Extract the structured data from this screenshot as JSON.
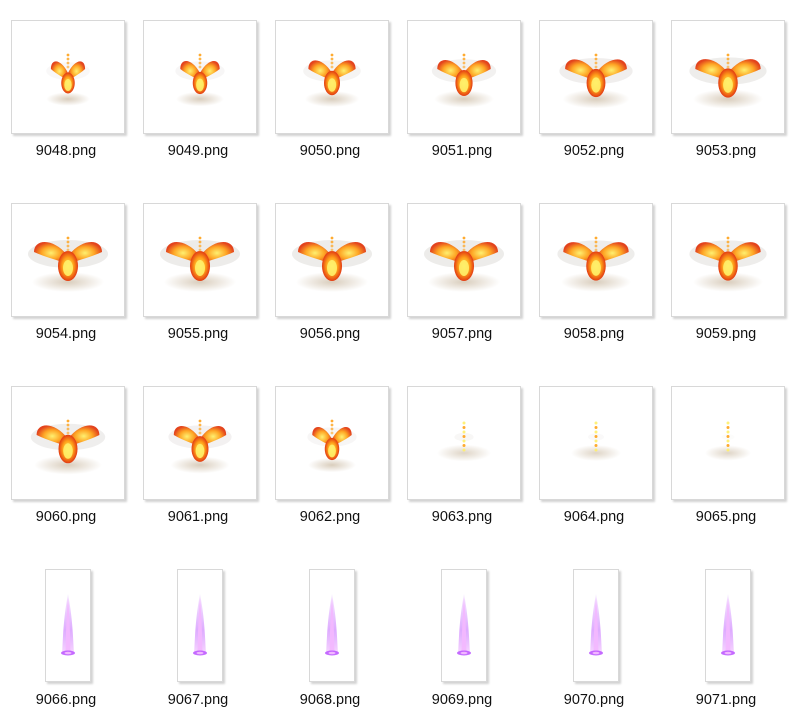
{
  "files": [
    {
      "name": "9048.png",
      "kind": "phoenix",
      "stage": 0.35
    },
    {
      "name": "9049.png",
      "kind": "phoenix",
      "stage": 0.45
    },
    {
      "name": "9050.png",
      "kind": "phoenix",
      "stage": 0.6
    },
    {
      "name": "9051.png",
      "kind": "phoenix",
      "stage": 0.72
    },
    {
      "name": "9052.png",
      "kind": "phoenix",
      "stage": 0.88
    },
    {
      "name": "9053.png",
      "kind": "phoenix",
      "stage": 0.95
    },
    {
      "name": "9054.png",
      "kind": "phoenix",
      "stage": 1.0
    },
    {
      "name": "9055.png",
      "kind": "phoenix",
      "stage": 1.0
    },
    {
      "name": "9056.png",
      "kind": "phoenix",
      "stage": 1.0
    },
    {
      "name": "9057.png",
      "kind": "phoenix",
      "stage": 1.0
    },
    {
      "name": "9058.png",
      "kind": "phoenix",
      "stage": 0.95
    },
    {
      "name": "9059.png",
      "kind": "phoenix",
      "stage": 0.95
    },
    {
      "name": "9060.png",
      "kind": "phoenix",
      "stage": 0.9
    },
    {
      "name": "9061.png",
      "kind": "phoenix",
      "stage": 0.7
    },
    {
      "name": "9062.png",
      "kind": "phoenix",
      "stage": 0.45
    },
    {
      "name": "9063.png",
      "kind": "fade",
      "stage": 0.35
    },
    {
      "name": "9064.png",
      "kind": "fade",
      "stage": 0.25
    },
    {
      "name": "9065.png",
      "kind": "fade",
      "stage": 0.15
    },
    {
      "name": "9066.png",
      "kind": "beam",
      "stage": 1.0
    },
    {
      "name": "9067.png",
      "kind": "beam",
      "stage": 1.0
    },
    {
      "name": "9068.png",
      "kind": "beam",
      "stage": 1.0
    },
    {
      "name": "9069.png",
      "kind": "beam",
      "stage": 1.0
    },
    {
      "name": "9070.png",
      "kind": "beam",
      "stage": 1.0
    },
    {
      "name": "9071.png",
      "kind": "beam",
      "stage": 1.0
    }
  ],
  "colors": {
    "flame_core": "#fff06a",
    "flame_mid": "#ffa21a",
    "flame_outer": "#e23a12",
    "smoke": "#b9b2ad",
    "glow_shadow": "#c9b8a0",
    "beam_core": "#f2b8ff",
    "beam_glow": "#b84dff"
  }
}
